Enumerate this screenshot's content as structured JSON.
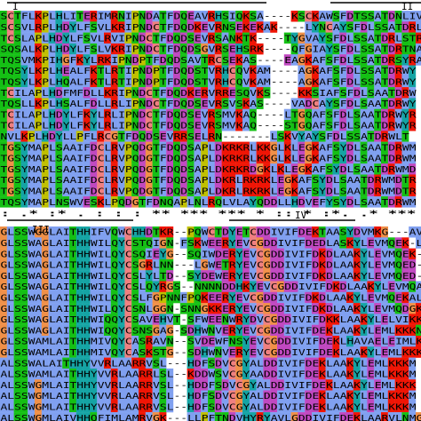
{
  "blocks": [
    {
      "rows": [
        "SCTFLKPLHLITERIMRNIPNDATFDQEAVRHSIQKSA----KSCKAWSFDTSSATDNLIV",
        "SCSVLRPLHDYLFSVLKRIPNDCTFDQDKEVRNSEKEKAK----LYNCAYSFDLSSATDRL",
        "TCSLAPLHDYLFSVLRVIPNDCTFDQDSEVRSANKTK----TYGVAYSFDLSSATDRLSTR",
        "SQSALKPLHDYLFSLVKRIPNDCTFDQDSGVRSEHSRK----QFGIAYSFDLSSATDRTNA",
        "TQSVMKPIHGFKYLRKIPNDPTFDQDSAVTRCSEKAS----EAGKAFSFDLSSATDRSYRA",
        "TQSYLKPLHEALFKTLRTIPNDPTFDQDSTVRHCQVKAM----AGKAFSFDLSSATDRWY",
        "TQSYLKPLHQALFKTLRTIPNDPTFDQDSTVRHCQVKAM----AGKAFSFDLSSATDRWY",
        "TCILAPLHDFMFDLLKRIPNDCTFDQDKERVRRESQVKS----KKSIAFSFDLSAATDRW",
        "TQSLLKPLHSALFDLLRLIPNDCTFDQDSEVRSVSKAS----VADCAYSFDLSAATDRWY",
        "TCILAPLHDYLFKYLRLIPNDCTFDQDSEVRSMVKAQ----LTGQAFSFDLSAATDRWYR",
        "TCILAPLHDYLFKYLRLIPNDCTFDQDSEVRSMVKAQ----STGQAFSFDLSAATDRWYR",
        "NVLKPLHDYLLPFLRCGTFDQDSEVRRSELRN-------LSKVYAYSFDLSSATDRWLT",
        "TGSYMAPLSAAIFDCLRVPQDGTFDQDSAPLDKRKRLKKGLKLEGKAFSYDLSAATDRWM",
        "TGSYMAPLSAAIFDCLRVPQDGTFDQDSAPLDKRKRLKKGLKLEGKAFSYDLSAATDRWM",
        "TGSYMAPLSAAIFDCLRVPQDGTFDQDSAPLDKRKRDGKLKLEGKAFSYDLSAATDRWMD",
        "TGSYMAPLSAAIFDCLRVPQDGTFDQDSAPLDKRLRKRKLEGKAFSYDLSAATDRWMDTR",
        "TGSYMAPLSAAIFDCLRVPQDGTFDQDSAPLDKRLRKRKLEGKAFSYDLSAATDRWMDTR",
        "TQSYMAPLNSWVESKLPQDGTFDNQAPLNLRQLVLAYQDDLLHDVEFYSYDLSAATDRWM"
      ],
      "conservation": " :  .*  :* .  :    :  : ** ***   ***  *     ::  * :*. .* ***"
    },
    {
      "rows": [
        "GLSSWGGLAITHHIFVQWCHHDTKR--PQWCTDYETCDDIVIFDEKTAASYDVMKG---AV",
        "GLSSWAGLAITHHWILQYCSTQIGN-FSKWEERYEVCGDDIVIFDEDLASKYLEVMQEK-L",
        "GLSSWAGLAITHHWILQYCSQIEYG--SQIWDERYEVCGDDIVIFDKDLAAKYLEVMQEK-",
        "GLSSWAGLAITHHWILQYCSGRLNN---LGWETRYEVCGDDIVIFDKDLAAKYLEVMQED-",
        "GLSSWAGLAITHHWILQYCSLYLTD--SYDEWERYEVCGDDIVIFDKDLAAKYLEVMQED-",
        "GLSSWAGLAITHHWILQYCSLQYRGS--NNNNDDHKYEVCGDDIVIFDKDLAAKYLEVMQA",
        "GLSSWAGLAITHHWILQYCSLFGPNNFPQKEERYEVCGDDIVIFDKDLAAKYLEVMQEKAL",
        "GLSSWAGLAITHHWILQYCSNLGGN-SNNGKKERYEVCGDDIVIFDKDLAAKYLEVMQDGK",
        "GLSSWAGLAITHHWIQQYCSAVEHVT-SFWEENWRYDVCGDDIVIFDKKLAAKYLELVIKK",
        "GLSSWAGLAITHHWIQQYCSNSGAG-SDHWNVERYEVCGDDIVIFDEKLAAKYLEMLKKKN",
        "GLSSWAMLAITHHMIVQYCASRAVN--SVDEWFNSYEVCGDDIVIFDEKLHAVAELEIMLK",
        "GLSSWAMLAITHHMIVQYCASKSTG--SDHWNVERYEVCGDDIVIFDEKLAAKYLEMLKKK",
        "ALSSWALAITHHYVVRLAARRVSL---HDFSDVCGYALDDIVIFDEKLAAKYLEMLKKKM",
        "ALSSWAMLAITHHYVVRLAARRLSL--KDDWSVCGYAADDIVIFDEKLAAKYLEMLKKKM",
        "ALSSWGMLAITHHYVVRLAARRVSL--HDDFSDVCGYALDDIVIFDEKLAAKYLEMLKKK",
        "ALSSWGMLAITHHYVVRLAARRVSL--HDFSDVCGYALDDIVIFDEKLAAKYLEMLKKKM",
        "ALSSWGMLAITHHYVVRLAARRVSL--HDFSDVCGYALDDIVIFDEKLAAKYLEMLKKKM",
        "ALSSWGMLAIVHHQFIMLAMRVGK---LLPFTNDVHYRYAVLGDDIVIFDEKLAARVLNMGK"
      ],
      "conservation": " ***  **. * ** *. .     .  ..    *  :**:**:**   .       :  : "
    }
  ],
  "motifs": [
    "I",
    "II",
    "III",
    "IV"
  ]
}
